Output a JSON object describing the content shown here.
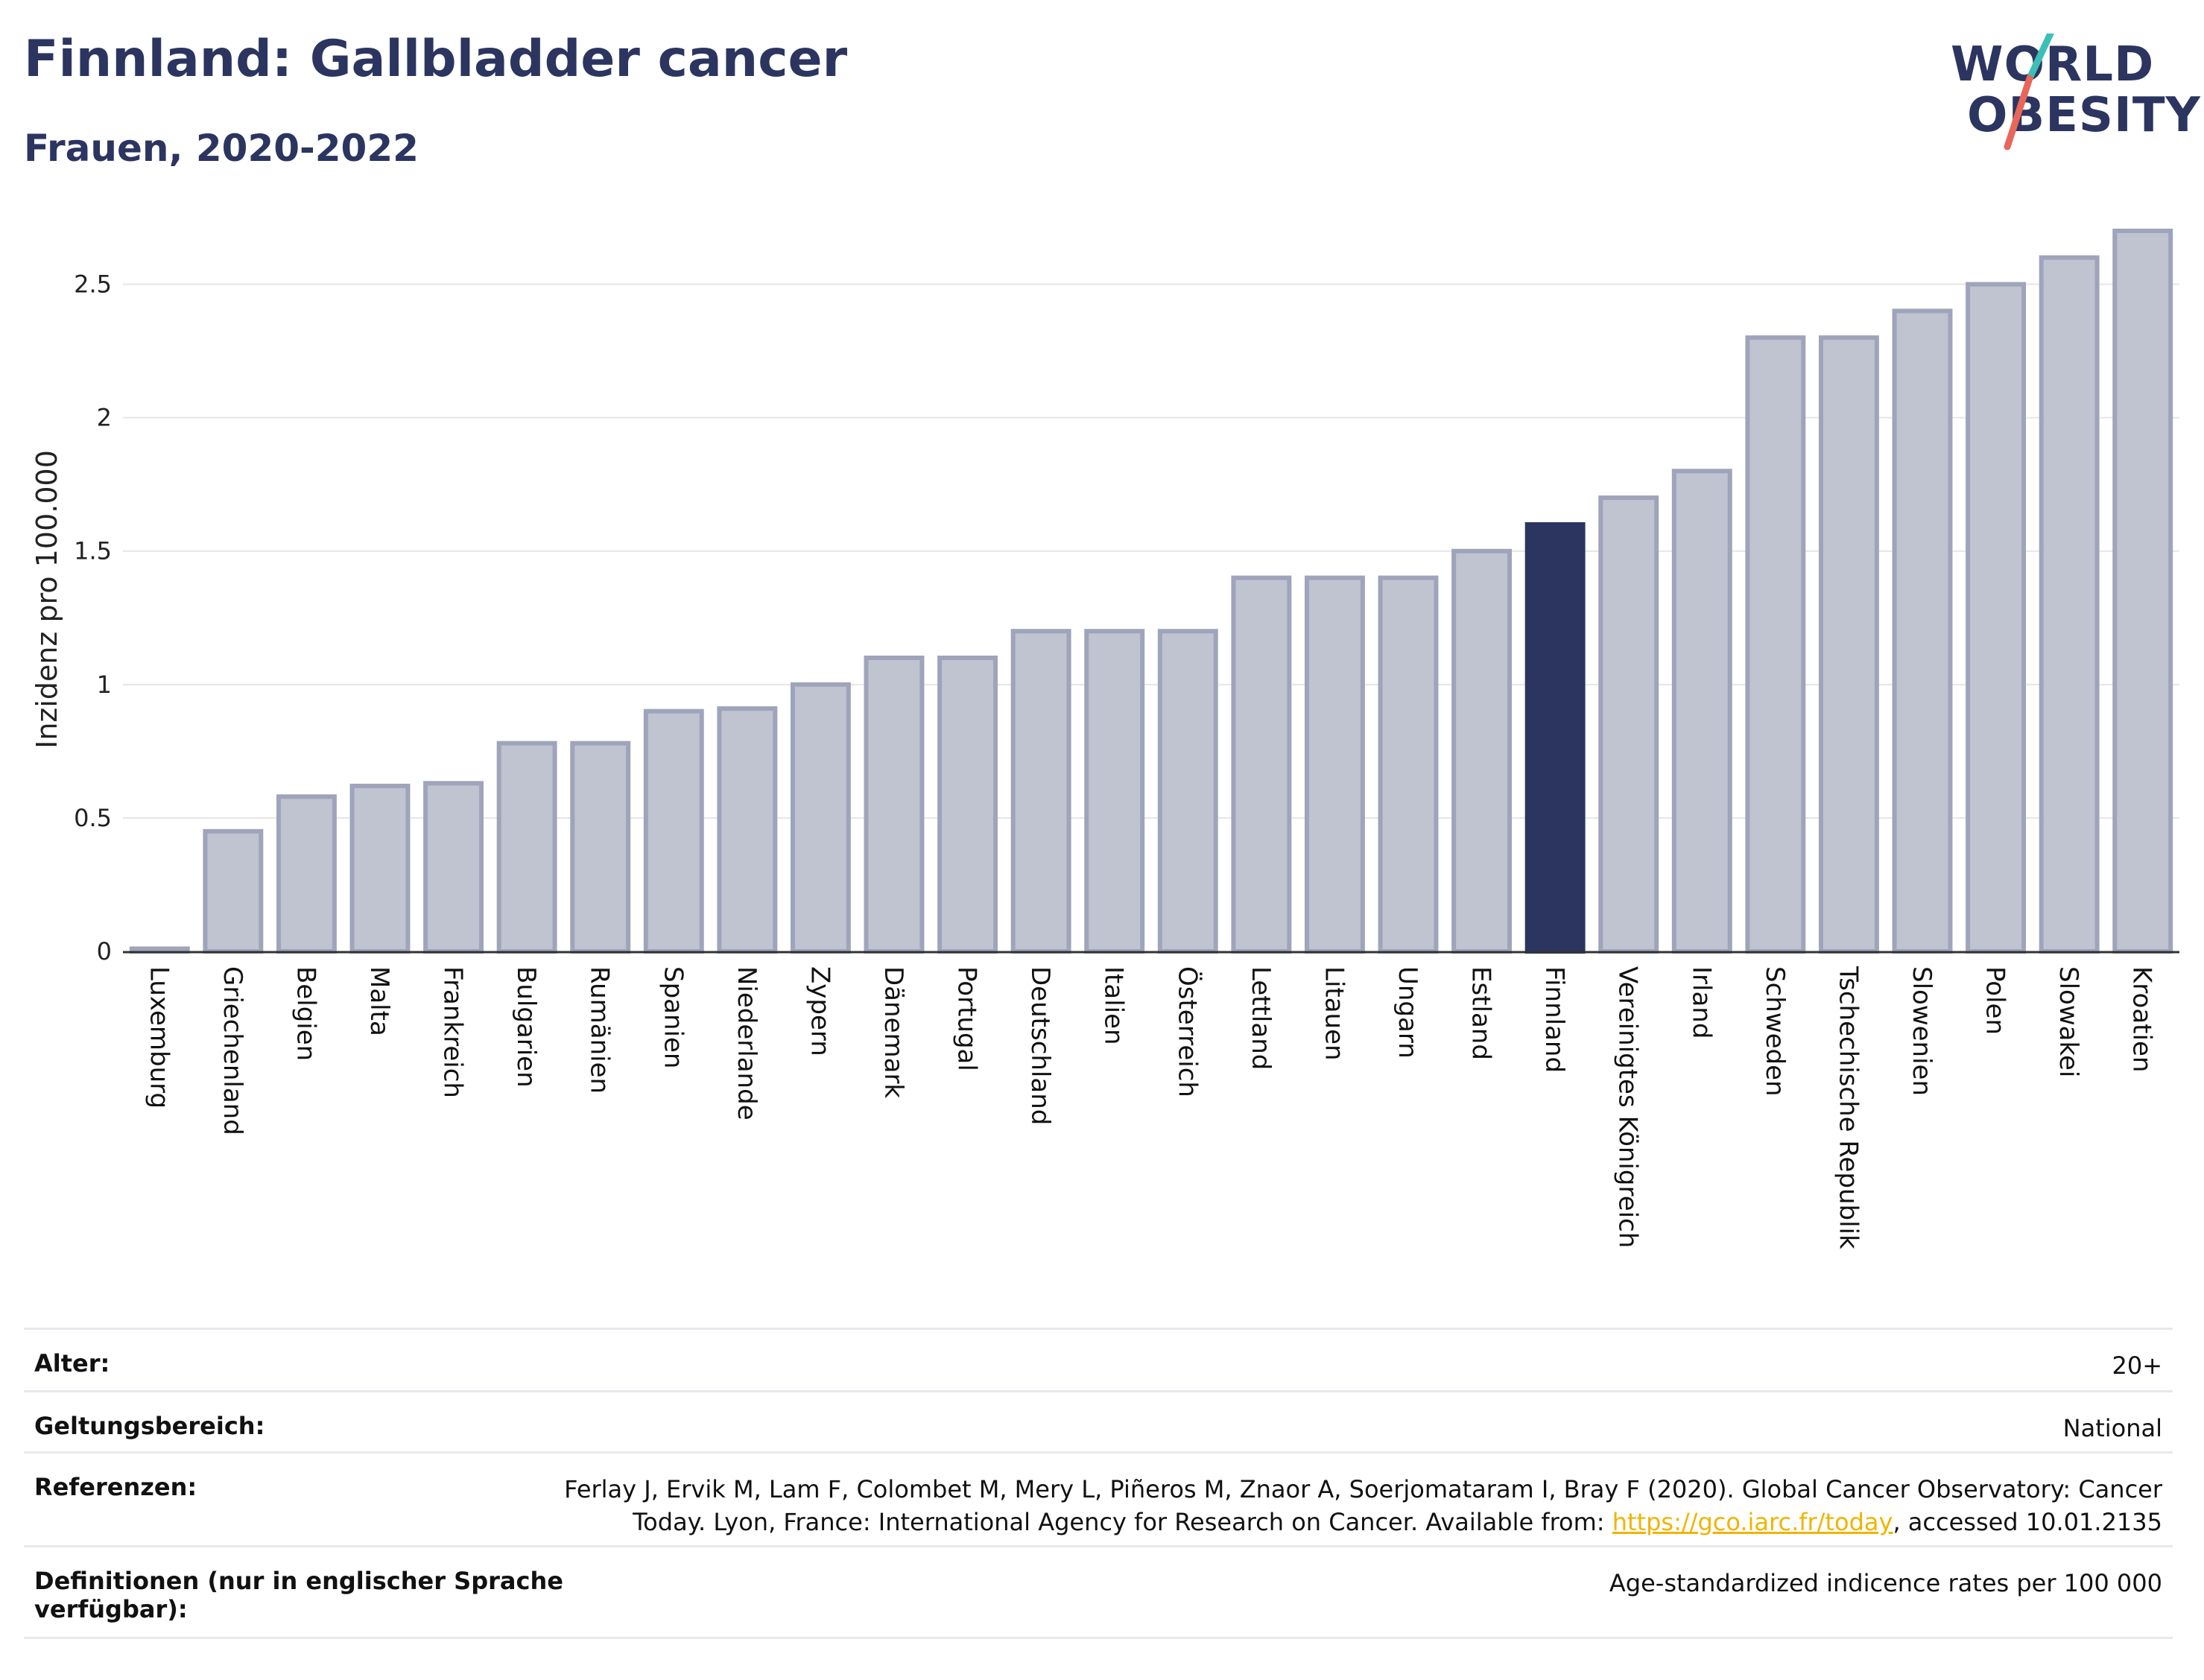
{
  "header": {
    "title": "Finnland: Gallbladder cancer",
    "subtitle": "Frauen, 2020-2022"
  },
  "logo": {
    "line1": "WORLD",
    "line2": "OBESITY",
    "colors": {
      "text": "#2b3560",
      "slash_top": "#3cbfb4",
      "slash_bottom": "#e8665a"
    }
  },
  "colors": {
    "bar_default": "#c0c3d0",
    "bar_border": "#9fa4bb",
    "bar_highlight": "#2b3560",
    "grid": "#e6e6ea",
    "axis": "#333333"
  },
  "chart_data": {
    "type": "bar",
    "ylabel": "Inzidenz pro 100.000",
    "ylim": [
      0,
      2.75
    ],
    "yticks": [
      0,
      0.5,
      1,
      1.5,
      2,
      2.5
    ],
    "ytick_labels": [
      "0",
      "0.5",
      "1",
      "1.5",
      "2",
      "2.5"
    ],
    "grid": true,
    "highlight": "Finnland",
    "categories": [
      "Luxemburg",
      "Griechenland",
      "Belgien",
      "Malta",
      "Frankreich",
      "Bulgarien",
      "Rumänien",
      "Spanien",
      "Niederlande",
      "Zypern",
      "Dänemark",
      "Portugal",
      "Deutschland",
      "Italien",
      "Österreich",
      "Lettland",
      "Litauen",
      "Ungarn",
      "Estland",
      "Finnland",
      "Vereinigtes Königreich",
      "Irland",
      "Schweden",
      "Tschechische Republik",
      "Slowenien",
      "Polen",
      "Slowakei",
      "Kroatien"
    ],
    "values": [
      0.01,
      0.45,
      0.58,
      0.62,
      0.63,
      0.78,
      0.78,
      0.9,
      0.91,
      1.0,
      1.1,
      1.1,
      1.2,
      1.2,
      1.2,
      1.4,
      1.4,
      1.4,
      1.5,
      1.6,
      1.7,
      1.8,
      2.3,
      2.3,
      2.4,
      2.5,
      2.6,
      2.7
    ]
  },
  "meta": {
    "rows": [
      {
        "label": "Alter:",
        "value": "20+"
      },
      {
        "label": "Geltungsbereich:",
        "value": "National"
      },
      {
        "label": "Referenzen:",
        "value_pre": "Ferlay J, Ervik M, Lam F, Colombet M, Mery L, Piñeros M, Znaor A, Soerjomataram I, Bray F (2020). Global Cancer Observatory: Cancer\nToday. Lyon, France: International Agency for Research on Cancer. Available from: ",
        "link": "https://gco.iarc.fr/today",
        "value_post": ", accessed 10.01.2135"
      },
      {
        "label": "Definitionen (nur in englischer Sprache\nverfügbar):",
        "value": "Age-standardized indicence rates per 100 000"
      }
    ]
  }
}
